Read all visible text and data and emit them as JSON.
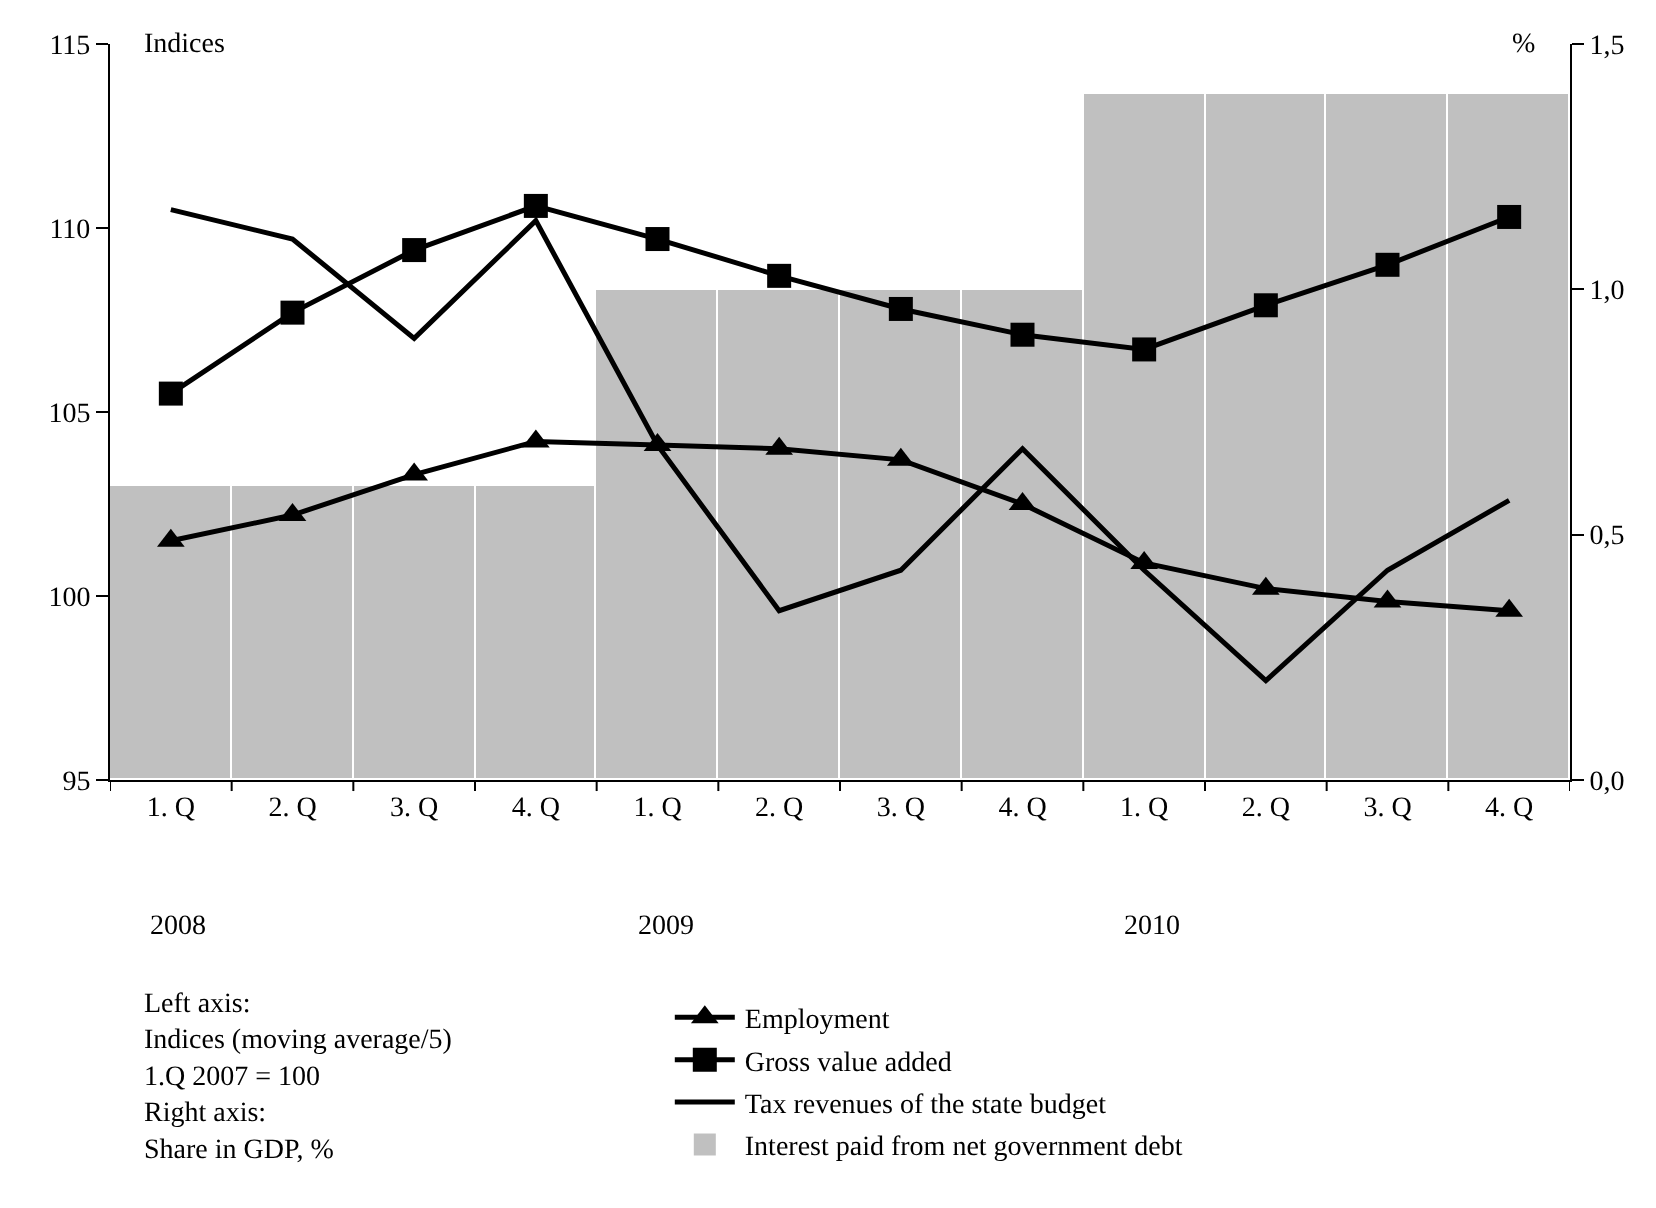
{
  "chart_data": {
    "type": "line",
    "ylabel": "Indices",
    "y2label": "%",
    "categories": [
      "1. Q",
      "2. Q",
      "3. Q",
      "4. Q",
      "1. Q",
      "2. Q",
      "3. Q",
      "4. Q",
      "1. Q",
      "2. Q",
      "3. Q",
      "4. Q"
    ],
    "series": [
      {
        "name": "Employment",
        "marker": "triangle",
        "color": "#000000",
        "values": [
          101.5,
          102.2,
          103.3,
          104.2,
          104.1,
          104.0,
          103.7,
          102.5,
          100.9,
          100.2,
          99.85,
          99.6
        ]
      },
      {
        "name": "Gross value added",
        "marker": "square",
        "color": "#000000",
        "values": [
          105.5,
          107.7,
          109.4,
          110.6,
          109.7,
          108.7,
          107.8,
          107.1,
          106.7,
          107.9,
          109.0,
          110.3
        ]
      },
      {
        "name": "Tax revenues of the state budget",
        "marker": "none",
        "color": "#000000",
        "values": [
          110.5,
          109.7,
          107.0,
          110.2,
          104.1,
          99.6,
          100.7,
          104.0,
          100.7,
          97.7,
          100.7,
          102.6
        ]
      },
      {
        "name": "Interest paid from net government debt",
        "type": "bar",
        "axis": "y2",
        "color": "#c0c0c0",
        "values": [
          0.6,
          0.6,
          0.6,
          0.6,
          1.0,
          1.0,
          1.0,
          1.0,
          1.4,
          1.4,
          1.4,
          1.4
        ]
      }
    ],
    "ylim": [
      95,
      115
    ],
    "yticks": [
      95,
      100,
      105,
      110,
      115
    ],
    "y2lim": [
      0,
      1.5
    ],
    "y2ticks": [
      {
        "value": 0,
        "label": "0,0"
      },
      {
        "value": 0.5,
        "label": "0,5"
      },
      {
        "value": 1,
        "label": "1,0"
      },
      {
        "value": 1.5,
        "label": "1,5"
      }
    ],
    "grid": false,
    "legend": "bottom",
    "annotations": [
      "2008",
      "2009",
      "2010",
      "Left axis:\nIndices (moving average/5)\n1.Q 2007 = 100\nRight axis:\nShare in GDP, %"
    ]
  }
}
